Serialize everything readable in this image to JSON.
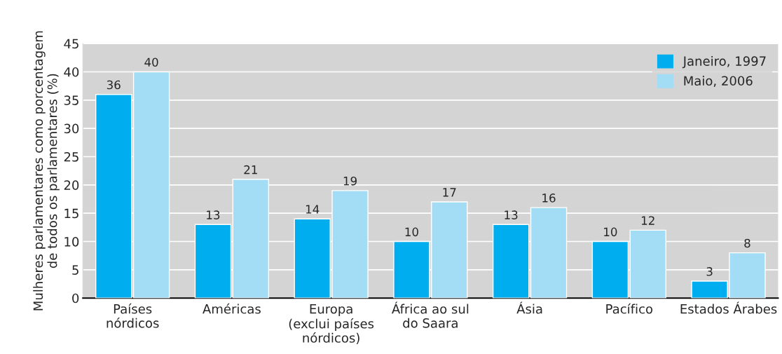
{
  "chart_data": {
    "type": "bar",
    "ylabel": "Mulheres parlamentares como porcentagem\nde todos os parlamentares (%)",
    "categories": [
      "Países\nnórdicos",
      "Américas",
      "Europa\n(exclui países\nnórdicos)",
      "África ao sul\ndo Saara",
      "Ásia",
      "Pacífico",
      "Estados Árabes"
    ],
    "series": [
      {
        "name": "Janeiro, 1997",
        "color": "#00aeef",
        "values": [
          36,
          13,
          14,
          10,
          13,
          10,
          3
        ]
      },
      {
        "name": "Maio, 2006",
        "color": "#a3dcf5",
        "values": [
          40,
          21,
          19,
          17,
          16,
          12,
          8
        ]
      }
    ],
    "ylim": [
      0,
      45
    ],
    "yticks": [
      0,
      5,
      10,
      15,
      20,
      25,
      30,
      35,
      40,
      45
    ],
    "grid": "y",
    "legend": "top right",
    "data_labels": true
  }
}
